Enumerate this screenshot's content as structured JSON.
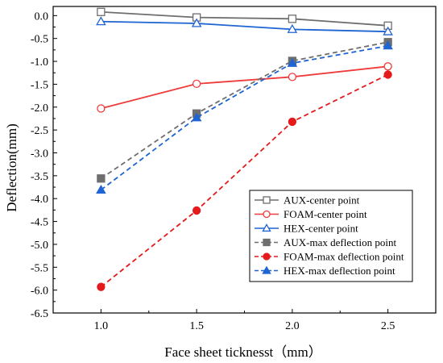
{
  "chart_data": {
    "type": "line",
    "xlabel": "Face sheet ticknesst（mm）",
    "ylabel": "Deflection(mm)",
    "x": [
      1.0,
      1.5,
      2.0,
      2.5
    ],
    "x_ticks": [
      "1.0",
      "1.5",
      "2.0",
      "2.5"
    ],
    "y_ticks": [
      "0.0",
      "-0.5",
      "-1.0",
      "-1.5",
      "-2.0",
      "-2.5",
      "-3.0",
      "-3.5",
      "-4.0",
      "-4.5",
      "-5.0",
      "-5.5",
      "-6.0",
      "-6.5"
    ],
    "xlim": [
      0.75,
      2.75
    ],
    "ylim": [
      -6.5,
      0.2
    ],
    "grid": false,
    "legend_position": "lower-right",
    "series": [
      {
        "name": "AUX-center point",
        "values": [
          0.08,
          -0.04,
          -0.07,
          -0.22
        ],
        "color": "#6e6e6e",
        "marker": "square-open",
        "line": "solid"
      },
      {
        "name": "FOAM-center point",
        "values": [
          -2.03,
          -1.49,
          -1.34,
          -1.11
        ],
        "color": "#ee3b3b",
        "marker": "circle-open",
        "line": "solid"
      },
      {
        "name": "HEX-center point",
        "values": [
          -0.13,
          -0.17,
          -0.3,
          -0.35
        ],
        "color": "#1e64d2",
        "marker": "triangle-open",
        "line": "solid"
      },
      {
        "name": "AUX-max deflection point",
        "values": [
          -3.56,
          -2.14,
          -0.99,
          -0.58
        ],
        "color": "#6e6e6e",
        "marker": "square-filled",
        "line": "dashed"
      },
      {
        "name": "FOAM-max deflection point",
        "values": [
          -5.93,
          -4.26,
          -2.32,
          -1.29
        ],
        "color": "#e41a1c",
        "marker": "circle-filled",
        "line": "dashed"
      },
      {
        "name": "HEX-max deflection point",
        "values": [
          -3.81,
          -2.23,
          -1.04,
          -0.66
        ],
        "color": "#1e64d2",
        "marker": "triangle-filled",
        "line": "dashed"
      }
    ]
  }
}
